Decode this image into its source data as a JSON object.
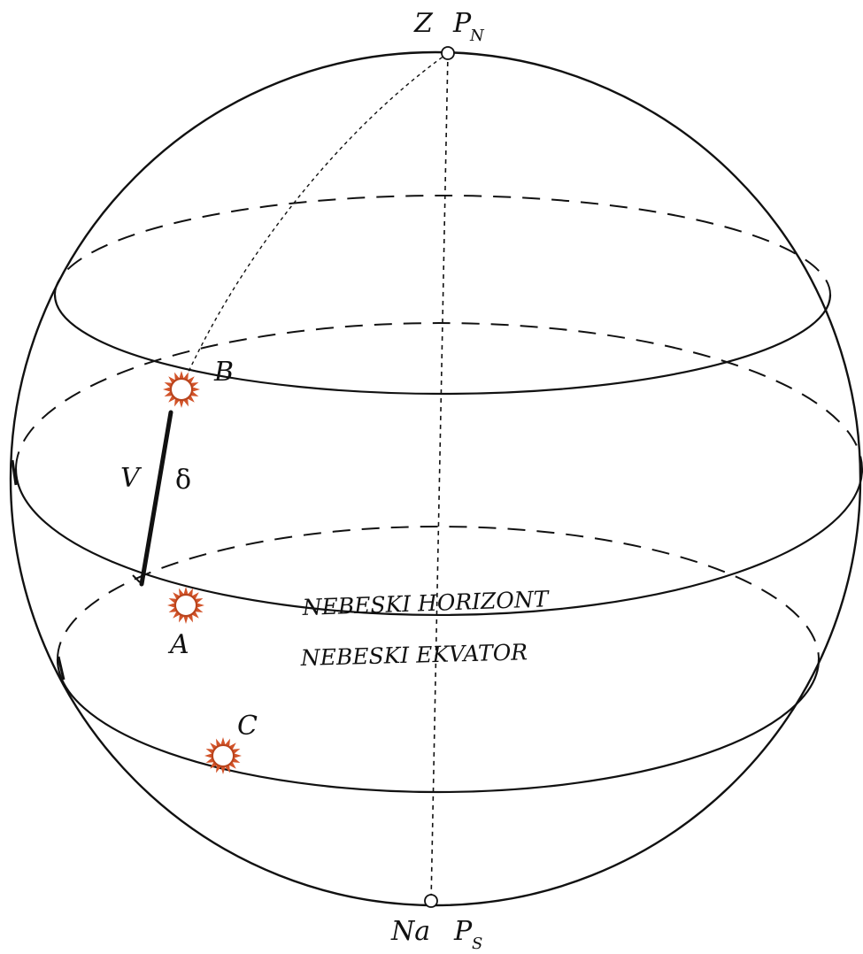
{
  "labels": {
    "zenith": "Z",
    "north_pole": "P",
    "north_pole_sub": "N",
    "nadir": "Na",
    "south_pole": "P",
    "south_pole_sub": "S",
    "star_a": "A",
    "star_b": "B",
    "star_c": "C",
    "arc_v": "V",
    "declination": "δ",
    "horizon": "NEBESKI HORIZONT",
    "equator": "NEBESKI EKVATOR"
  },
  "colors": {
    "line": "#111111",
    "star_fill": "#ffffff",
    "star_rays": "#d2542a",
    "star_ring": "#b8431c"
  },
  "icons": {
    "star": "sun-star-icon"
  }
}
